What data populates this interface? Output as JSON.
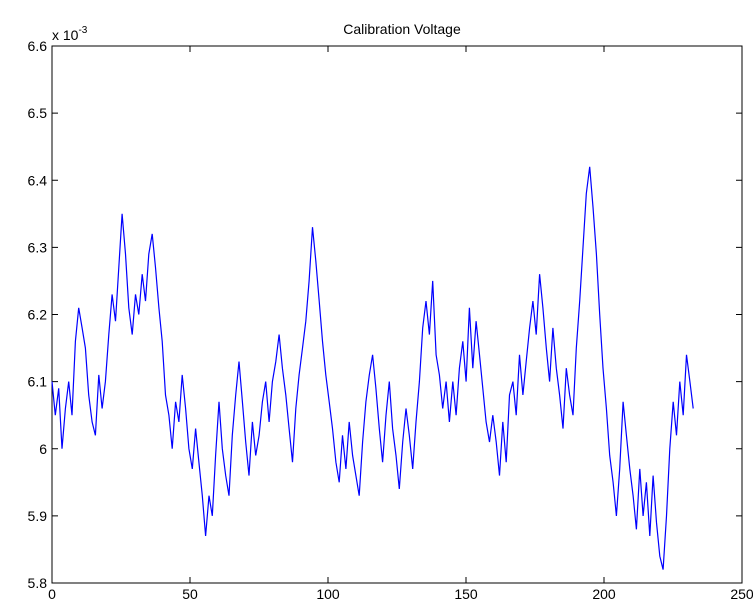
{
  "chart_data": {
    "type": "line",
    "title": "Calibration Voltage",
    "xlabel": "",
    "ylabel": "",
    "y_multiplier": {
      "base": "x 10",
      "exponent": "-3"
    },
    "xlim": [
      0,
      250
    ],
    "ylim": [
      5.8,
      6.6
    ],
    "x_ticks": [
      "0",
      "50",
      "100",
      "150",
      "200",
      "250"
    ],
    "y_ticks": [
      "5.8",
      "5.9",
      "6",
      "6.1",
      "6.2",
      "6.3",
      "6.4",
      "6.5",
      "6.6"
    ],
    "grid": false,
    "line_color": "#0000ff",
    "series": [
      {
        "values": [
          6.1,
          6.05,
          6.09,
          6.0,
          6.06,
          6.1,
          6.05,
          6.16,
          6.21,
          6.18,
          6.15,
          6.08,
          6.04,
          6.02,
          6.11,
          6.06,
          6.1,
          6.17,
          6.23,
          6.19,
          6.27,
          6.35,
          6.29,
          6.21,
          6.17,
          6.23,
          6.2,
          6.26,
          6.22,
          6.29,
          6.32,
          6.27,
          6.21,
          6.16,
          6.08,
          6.05,
          6.0,
          6.07,
          6.04,
          6.11,
          6.06,
          6.0,
          5.97,
          6.03,
          5.98,
          5.93,
          5.87,
          5.93,
          5.9,
          5.99,
          6.07,
          6.0,
          5.96,
          5.93,
          6.02,
          6.08,
          6.13,
          6.07,
          6.01,
          5.96,
          6.04,
          5.99,
          6.02,
          6.07,
          6.1,
          6.04,
          6.1,
          6.13,
          6.17,
          6.12,
          6.08,
          6.03,
          5.98,
          6.06,
          6.11,
          6.15,
          6.19,
          6.25,
          6.33,
          6.28,
          6.22,
          6.16,
          6.11,
          6.07,
          6.03,
          5.98,
          5.95,
          6.02,
          5.97,
          6.04,
          5.99,
          5.96,
          5.93,
          6.01,
          6.07,
          6.11,
          6.14,
          6.09,
          6.03,
          5.98,
          6.05,
          6.1,
          6.03,
          5.99,
          5.94,
          6.01,
          6.06,
          6.02,
          5.97,
          6.04,
          6.1,
          6.18,
          6.22,
          6.17,
          6.25,
          6.14,
          6.11,
          6.06,
          6.1,
          6.04,
          6.1,
          6.05,
          6.12,
          6.16,
          6.1,
          6.21,
          6.12,
          6.19,
          6.14,
          6.09,
          6.04,
          6.01,
          6.05,
          6.01,
          5.96,
          6.04,
          5.98,
          6.08,
          6.1,
          6.05,
          6.14,
          6.08,
          6.13,
          6.18,
          6.22,
          6.17,
          6.26,
          6.21,
          6.15,
          6.1,
          6.18,
          6.12,
          6.08,
          6.03,
          6.12,
          6.08,
          6.05,
          6.15,
          6.22,
          6.3,
          6.38,
          6.42,
          6.36,
          6.29,
          6.2,
          6.12,
          6.06,
          5.99,
          5.95,
          5.9,
          5.97,
          6.07,
          6.02,
          5.97,
          5.93,
          5.88,
          5.97,
          5.9,
          5.95,
          5.87,
          5.96,
          5.89,
          5.84,
          5.82,
          5.9,
          6.0,
          6.07,
          6.02,
          6.1,
          6.05,
          6.14,
          6.1,
          6.06
        ],
        "x_start": 0,
        "x_step": 1.21
      }
    ]
  }
}
